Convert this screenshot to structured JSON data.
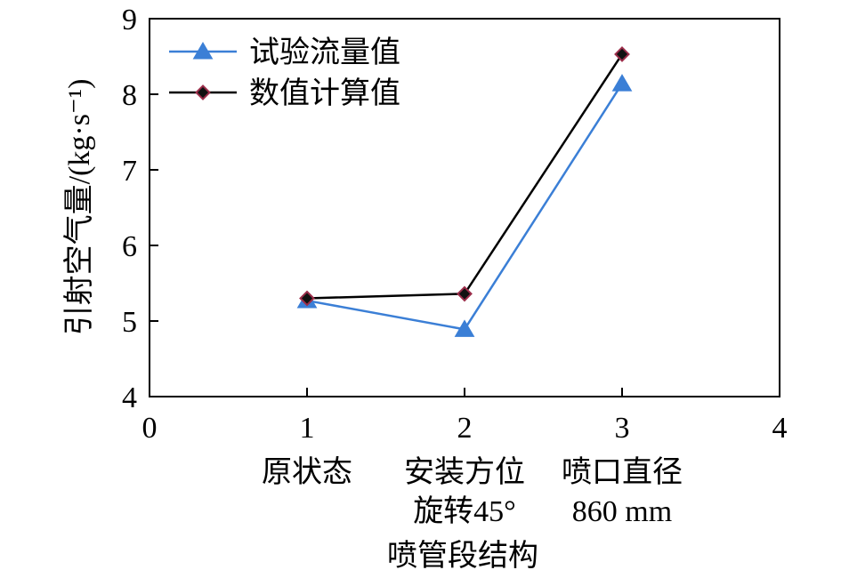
{
  "chart_data": {
    "type": "line",
    "title": "",
    "xlabel": "喷管段结构",
    "ylabel": "引射空气量/(kg·s⁻¹)",
    "xlim": [
      0,
      4
    ],
    "ylim": [
      4,
      9
    ],
    "x_ticks": [
      0,
      1,
      2,
      3,
      4
    ],
    "y_ticks": [
      4,
      5,
      6,
      7,
      8,
      9
    ],
    "grid": false,
    "legend_position": "top-left",
    "categories": [
      {
        "x": 1,
        "lines": [
          "原状态"
        ]
      },
      {
        "x": 2,
        "lines": [
          "安装方位",
          "旋转45°"
        ]
      },
      {
        "x": 3,
        "lines": [
          "喷口直径",
          "860 mm"
        ]
      }
    ],
    "series": [
      {
        "name": "试验流量值",
        "marker": "triangle",
        "color": "#3b7fd6",
        "marker_fill": "#3b7fd6",
        "x": [
          1,
          2,
          3
        ],
        "values": [
          5.27,
          4.89,
          8.14
        ]
      },
      {
        "name": "数值计算值",
        "marker": "diamond",
        "color": "#000000",
        "marker_fill": "#111111",
        "marker_edge": "#9b2d4a",
        "x": [
          1,
          2,
          3
        ],
        "values": [
          5.3,
          5.36,
          8.53
        ]
      }
    ]
  }
}
